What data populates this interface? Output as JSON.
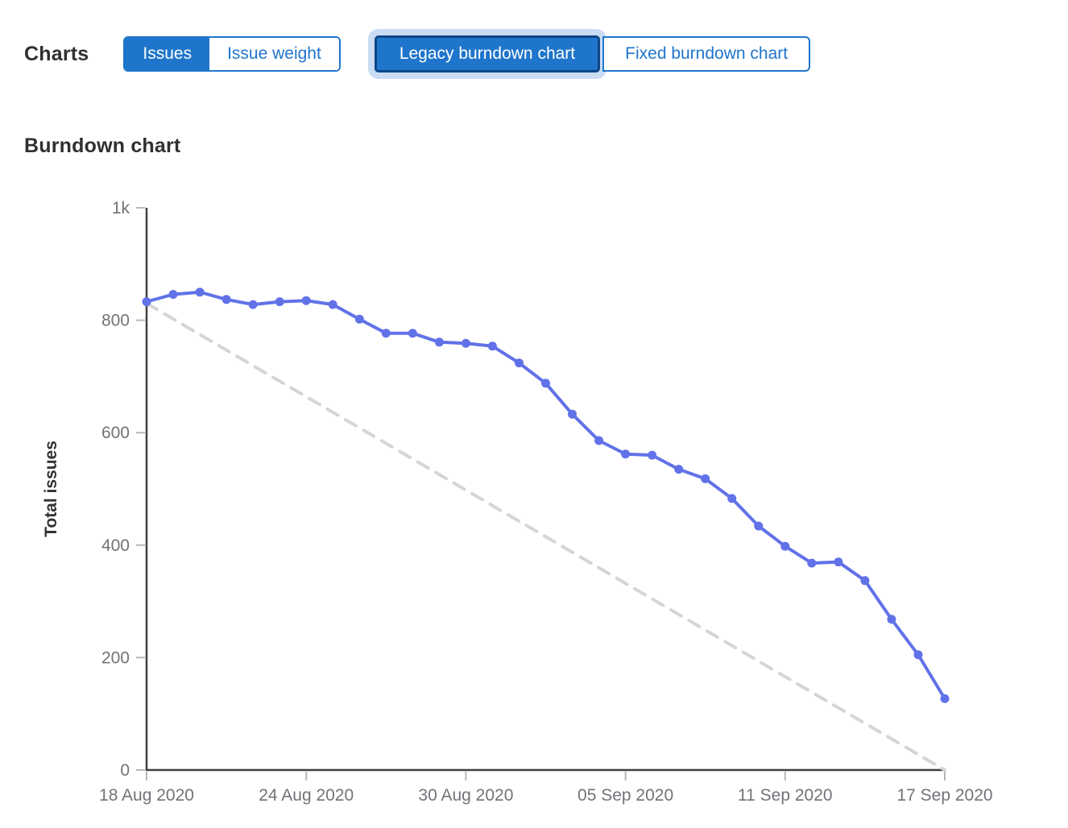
{
  "toolbar": {
    "title": "Charts",
    "metric_toggle": {
      "issues_label": "Issues",
      "issue_weight_label": "Issue weight",
      "selected": "Issues"
    },
    "chart_type_toggle": {
      "legacy_label": "Legacy burndown chart",
      "fixed_label": "Fixed burndown chart",
      "selected": "Legacy burndown chart",
      "focused": "Legacy burndown chart"
    }
  },
  "section": {
    "title": "Burndown chart"
  },
  "colors": {
    "accent_blue": "#1f75cb",
    "selected_button_border": "#0e4686",
    "focus_ring": "#c9dcf4",
    "series_blue": "#6172e8",
    "guideline_gray": "#d5d5d5",
    "axis_dark": "#3f3f3f",
    "tick_gray": "#b8b8b8",
    "axis_label_gray": "#737278",
    "heading_dark": "#303030"
  },
  "chart_data": {
    "type": "line",
    "title": "Burndown chart",
    "xlabel": "",
    "ylabel": "Total issues",
    "ylim": [
      0,
      1000
    ],
    "grid": false,
    "legend": "none",
    "y_ticks": [
      0,
      200,
      400,
      600,
      800,
      1000
    ],
    "y_tick_labels": [
      "0",
      "200",
      "400",
      "600",
      "800",
      "1k"
    ],
    "x_tick_labels": [
      "18 Aug 2020",
      "24 Aug 2020",
      "30 Aug 2020",
      "05 Sep 2020",
      "11 Sep 2020",
      "17 Sep 2020"
    ],
    "x_tick_day_index": [
      0,
      6,
      12,
      18,
      24,
      30
    ],
    "x_dates": [
      "18 Aug 2020",
      "19 Aug 2020",
      "20 Aug 2020",
      "21 Aug 2020",
      "22 Aug 2020",
      "23 Aug 2020",
      "24 Aug 2020",
      "25 Aug 2020",
      "26 Aug 2020",
      "27 Aug 2020",
      "28 Aug 2020",
      "29 Aug 2020",
      "30 Aug 2020",
      "31 Aug 2020",
      "01 Sep 2020",
      "02 Sep 2020",
      "03 Sep 2020",
      "04 Sep 2020",
      "05 Sep 2020",
      "06 Sep 2020",
      "07 Sep 2020",
      "08 Sep 2020",
      "09 Sep 2020",
      "10 Sep 2020",
      "11 Sep 2020",
      "12 Sep 2020",
      "13 Sep 2020",
      "14 Sep 2020",
      "15 Sep 2020",
      "16 Sep 2020",
      "17 Sep 2020"
    ],
    "series": [
      {
        "name": "actual-total-issues",
        "type": "line",
        "markers": true,
        "color": "#6172e8",
        "values": [
          833,
          846,
          850,
          837,
          828,
          833,
          835,
          828,
          802,
          777,
          777,
          761,
          759,
          754,
          724,
          688,
          633,
          586,
          562,
          560,
          535,
          518,
          483,
          434,
          398,
          368,
          370,
          337,
          268,
          205,
          127
        ]
      },
      {
        "name": "guideline",
        "type": "dashed-line",
        "color": "#d5d5d5",
        "values": {
          "start": 830,
          "end": 0
        }
      }
    ]
  }
}
